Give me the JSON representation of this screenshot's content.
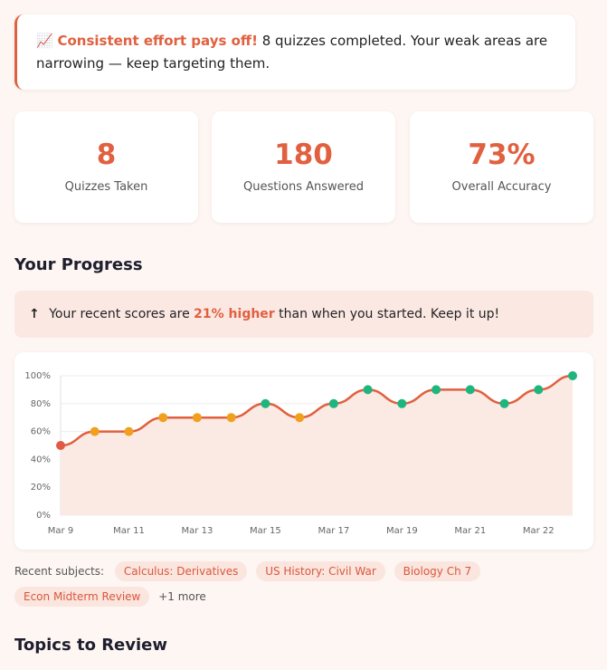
{
  "banner": {
    "icon": "📈",
    "headline": "Consistent effort pays off!",
    "text": "8 quizzes completed. Your weak areas are narrowing — keep targeting them."
  },
  "stats": [
    {
      "value": "8",
      "label": "Quizzes Taken"
    },
    {
      "value": "180",
      "label": "Questions Answered"
    },
    {
      "value": "73%",
      "label": "Overall Accuracy"
    }
  ],
  "progress": {
    "title": "Your Progress",
    "notice": {
      "icon": "↑",
      "before": "Your recent scores are",
      "highlight": "21% higher",
      "after": "than when you started. Keep it up!"
    },
    "chart": {
      "type": "line",
      "categories": [
        "Mar 9",
        null,
        "Mar 11",
        null,
        "Mar 13",
        null,
        "Mar 15",
        null,
        "Mar 17",
        null,
        "Mar 19",
        null,
        "Mar 21",
        null,
        "Mar 22",
        null
      ],
      "values": [
        50,
        60,
        60,
        70,
        70,
        70,
        80,
        70,
        80,
        90,
        80,
        90,
        90,
        80,
        90,
        100
      ],
      "marker_colors": [
        "#e05a44",
        "#f0a01c",
        "#f0a01c",
        "#f0a01c",
        "#f0a01c",
        "#f0a01c",
        "#1fb57e",
        "#f0a01c",
        "#1fb57e",
        "#1fb57e",
        "#1fb57e",
        "#1fb57e",
        "#1fb57e",
        "#1fb57e",
        "#1fb57e",
        "#1fb57e"
      ],
      "color": "#e0603f",
      "area_color": "#fbe9e3",
      "ylim": [
        0,
        100
      ],
      "yticks": [
        {
          "value": 0,
          "label": "0%"
        },
        {
          "value": 20,
          "label": "20%"
        },
        {
          "value": 40,
          "label": "40%"
        },
        {
          "value": 60,
          "label": "60%"
        },
        {
          "value": 80,
          "label": "80%"
        },
        {
          "value": 100,
          "label": "100%"
        }
      ],
      "grid": true
    },
    "subjects_label": "Recent subjects:",
    "subjects": [
      "Calculus: Derivatives",
      "US History: Civil War",
      "Biology Ch 7",
      "Econ Midterm Review"
    ],
    "more": "+1 more"
  },
  "topics": {
    "title": "Topics to Review"
  }
}
